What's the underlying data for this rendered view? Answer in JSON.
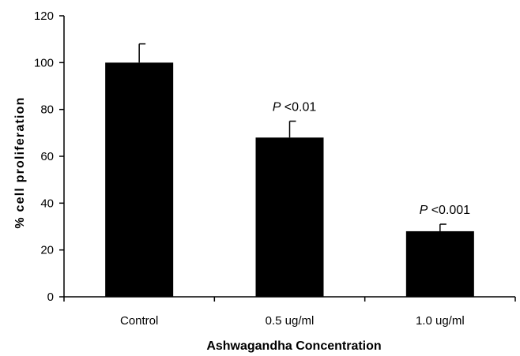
{
  "chart_data": {
    "type": "bar",
    "categories": [
      "Control",
      "0.5 ug/ml",
      "1.0 ug/ml"
    ],
    "values": [
      100,
      68,
      28
    ],
    "error_upper": [
      8,
      7,
      3
    ],
    "annotations": [
      {
        "index": 1,
        "italic": "P",
        "text": " <0.01"
      },
      {
        "index": 2,
        "italic": "P",
        "text": " <0.001"
      }
    ],
    "xlabel": "Ashwagandha Concentration",
    "ylabel": "% cell proliferation",
    "ylim": [
      0,
      120
    ],
    "yticks": [
      0,
      20,
      40,
      60,
      80,
      100,
      120
    ],
    "grid": false,
    "bar_color": "#000000"
  }
}
